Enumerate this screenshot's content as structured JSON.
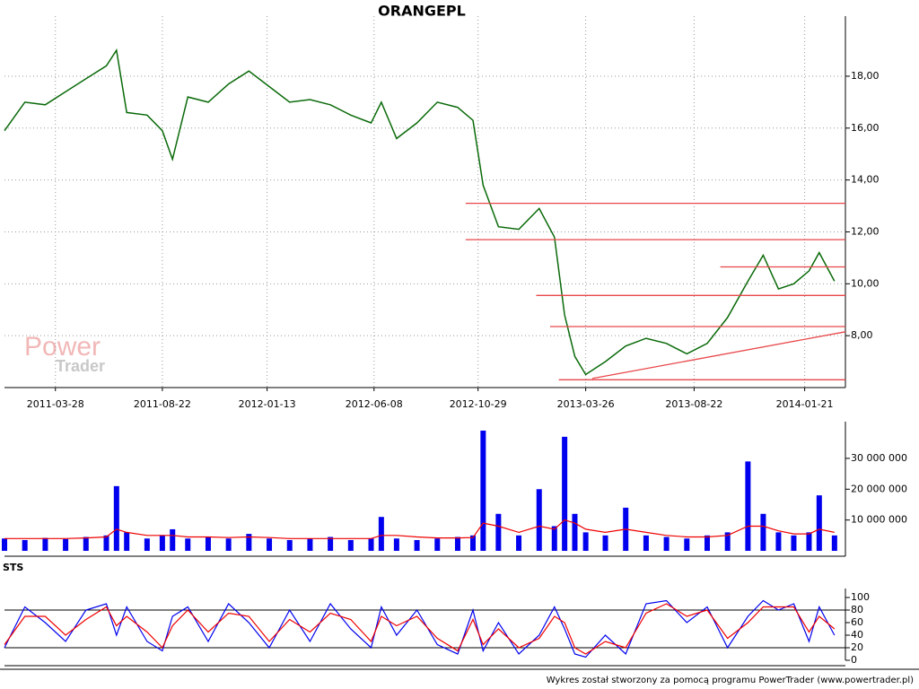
{
  "chart_data": [
    {
      "type": "line",
      "title": "ORANGEPL",
      "watermark": [
        "Power",
        "Trader"
      ],
      "xlim": [
        "2011-01-17",
        "2014-03-18"
      ],
      "xticks": [
        "2011-03-28",
        "2011-08-22",
        "2012-01-13",
        "2012-06-08",
        "2012-10-29",
        "2013-03-26",
        "2013-08-22",
        "2014-01-21"
      ],
      "ylim": [
        6,
        19.9
      ],
      "yticks": [
        {
          "value": 8,
          "label": "8,00"
        },
        {
          "value": 10,
          "label": "10,00"
        },
        {
          "value": 12,
          "label": "12,00"
        },
        {
          "value": 14,
          "label": "14,00"
        },
        {
          "value": 16,
          "label": "16,00"
        },
        {
          "value": 18,
          "label": "18,00"
        }
      ],
      "grid": true,
      "color": "#0a6a0a",
      "x": [
        "2011-01-17",
        "2011-02-14",
        "2011-03-14",
        "2011-04-11",
        "2011-05-09",
        "2011-06-06",
        "2011-06-20",
        "2011-07-04",
        "2011-08-01",
        "2011-08-22",
        "2011-09-05",
        "2011-09-26",
        "2011-10-24",
        "2011-11-21",
        "2011-12-19",
        "2012-01-16",
        "2012-02-13",
        "2012-03-12",
        "2012-04-09",
        "2012-05-07",
        "2012-06-04",
        "2012-06-18",
        "2012-07-09",
        "2012-08-06",
        "2012-09-03",
        "2012-10-01",
        "2012-10-22",
        "2012-11-05",
        "2012-11-26",
        "2012-12-24",
        "2013-01-21",
        "2013-02-11",
        "2013-02-25",
        "2013-03-11",
        "2013-03-26",
        "2013-04-22",
        "2013-05-20",
        "2013-06-17",
        "2013-07-15",
        "2013-08-12",
        "2013-09-09",
        "2013-10-07",
        "2013-11-04",
        "2013-11-25",
        "2013-12-16",
        "2014-01-06",
        "2014-01-27",
        "2014-02-10",
        "2014-03-03"
      ],
      "values": [
        15.9,
        17.0,
        16.9,
        17.4,
        17.9,
        18.4,
        19.0,
        16.6,
        16.5,
        15.9,
        14.8,
        17.2,
        17.0,
        17.7,
        18.2,
        17.6,
        17.0,
        17.1,
        16.9,
        16.5,
        16.2,
        17.0,
        15.6,
        16.2,
        17.0,
        16.8,
        16.3,
        13.8,
        12.2,
        12.1,
        12.9,
        11.8,
        8.8,
        7.2,
        6.5,
        7.0,
        7.6,
        7.9,
        7.7,
        7.3,
        7.7,
        8.7,
        10.1,
        11.1,
        9.8,
        10.0,
        10.5,
        11.2,
        10.1
      ],
      "levels": {
        "color": "#e8474a",
        "values": [
          13.1,
          11.7,
          10.65,
          9.55,
          8.35,
          6.3
        ],
        "starts": [
          "2012-10-12",
          "2012-10-12",
          "2013-09-27",
          "2013-01-17",
          "2013-02-05",
          "2013-02-17"
        ]
      },
      "trendline": {
        "x": [
          "2013-04-04",
          "2014-03-18"
        ],
        "values": [
          6.35,
          8.15
        ]
      }
    },
    {
      "type": "bar",
      "xlim": [
        "2011-01-17",
        "2014-03-18"
      ],
      "ylim": [
        0,
        39000000
      ],
      "yticks": [
        {
          "value": 10000000,
          "label": "10 000 000"
        },
        {
          "value": 20000000,
          "label": "20 000 000"
        },
        {
          "value": 30000000,
          "label": "30 000 000"
        }
      ],
      "color": "#0000ee",
      "average_color": "#ee0000",
      "x": [
        "2011-01-17",
        "2011-02-14",
        "2011-03-14",
        "2011-04-11",
        "2011-05-09",
        "2011-06-06",
        "2011-06-20",
        "2011-07-04",
        "2011-08-01",
        "2011-08-22",
        "2011-09-05",
        "2011-09-26",
        "2011-10-24",
        "2011-11-21",
        "2011-12-19",
        "2012-01-16",
        "2012-02-13",
        "2012-03-12",
        "2012-04-09",
        "2012-05-07",
        "2012-06-04",
        "2012-06-18",
        "2012-07-09",
        "2012-08-06",
        "2012-09-03",
        "2012-10-01",
        "2012-10-22",
        "2012-11-05",
        "2012-11-26",
        "2012-12-24",
        "2013-01-21",
        "2013-02-11",
        "2013-02-25",
        "2013-03-11",
        "2013-03-26",
        "2013-04-22",
        "2013-05-20",
        "2013-06-17",
        "2013-07-15",
        "2013-08-12",
        "2013-09-09",
        "2013-10-07",
        "2013-11-04",
        "2013-11-25",
        "2013-12-16",
        "2014-01-06",
        "2014-01-27",
        "2014-02-10",
        "2014-03-03"
      ],
      "values": [
        4000000,
        3500000,
        4200000,
        3800000,
        4500000,
        5000000,
        21000000,
        6000000,
        4000000,
        5000000,
        7000000,
        4000000,
        4500000,
        4000000,
        5500000,
        4000000,
        3500000,
        4000000,
        4500000,
        3500000,
        4000000,
        11000000,
        4000000,
        3500000,
        4000000,
        4500000,
        5000000,
        39000000,
        12000000,
        5000000,
        20000000,
        8000000,
        37000000,
        12000000,
        6000000,
        5000000,
        14000000,
        5000000,
        4500000,
        4000000,
        5000000,
        6000000,
        29000000,
        12000000,
        6000000,
        5000000,
        6000000,
        18000000,
        5000000
      ],
      "average": [
        4000000,
        4000000,
        4000000,
        4000000,
        4200000,
        4500000,
        7000000,
        6000000,
        5000000,
        5000000,
        5000000,
        4500000,
        4500000,
        4300000,
        4500000,
        4300000,
        4000000,
        4000000,
        4000000,
        4000000,
        4000000,
        5000000,
        5000000,
        4500000,
        4200000,
        4200000,
        4300000,
        9000000,
        8000000,
        6000000,
        8000000,
        7000000,
        10000000,
        9000000,
        7000000,
        6000000,
        7000000,
        6000000,
        5000000,
        4500000,
        4500000,
        5000000,
        8000000,
        8000000,
        6500000,
        5500000,
        5500000,
        7000000,
        6000000
      ]
    },
    {
      "type": "line",
      "title": "STS",
      "xlim": [
        "2011-01-17",
        "2014-03-18"
      ],
      "ylim": [
        0,
        100
      ],
      "yticks": [
        0,
        20,
        40,
        60,
        80,
        100
      ],
      "guides": [
        20,
        80
      ],
      "x": [
        "2011-01-17",
        "2011-02-14",
        "2011-03-14",
        "2011-04-11",
        "2011-05-09",
        "2011-06-06",
        "2011-06-20",
        "2011-07-04",
        "2011-08-01",
        "2011-08-22",
        "2011-09-05",
        "2011-09-26",
        "2011-10-24",
        "2011-11-21",
        "2011-12-19",
        "2012-01-16",
        "2012-02-13",
        "2012-03-12",
        "2012-04-09",
        "2012-05-07",
        "2012-06-04",
        "2012-06-18",
        "2012-07-09",
        "2012-08-06",
        "2012-09-03",
        "2012-10-01",
        "2012-10-22",
        "2012-11-05",
        "2012-11-26",
        "2012-12-24",
        "2013-01-21",
        "2013-02-11",
        "2013-02-25",
        "2013-03-11",
        "2013-03-26",
        "2013-04-22",
        "2013-05-20",
        "2013-06-17",
        "2013-07-15",
        "2013-08-12",
        "2013-09-09",
        "2013-10-07",
        "2013-11-04",
        "2013-11-25",
        "2013-12-16",
        "2014-01-06",
        "2014-01-27",
        "2014-02-10",
        "2014-03-03"
      ],
      "series": [
        {
          "color": "#0000ee",
          "values": [
            20,
            85,
            60,
            30,
            80,
            90,
            40,
            85,
            30,
            15,
            70,
            85,
            30,
            90,
            60,
            20,
            80,
            30,
            90,
            50,
            20,
            85,
            40,
            80,
            25,
            10,
            80,
            15,
            60,
            10,
            40,
            85,
            50,
            10,
            5,
            40,
            10,
            90,
            95,
            60,
            85,
            20,
            70,
            95,
            80,
            90,
            30,
            85,
            40
          ]
        },
        {
          "color": "#ee0000",
          "values": [
            25,
            70,
            70,
            40,
            65,
            85,
            55,
            70,
            45,
            20,
            55,
            80,
            45,
            75,
            70,
            30,
            65,
            45,
            75,
            65,
            30,
            70,
            55,
            70,
            35,
            15,
            65,
            25,
            50,
            20,
            35,
            70,
            60,
            20,
            10,
            30,
            20,
            75,
            90,
            70,
            80,
            35,
            60,
            85,
            85,
            85,
            45,
            70,
            50
          ]
        }
      ]
    }
  ],
  "footer": "Wykres został stworzony za pomocą programu PowerTrader (www.powertrader.pl)"
}
